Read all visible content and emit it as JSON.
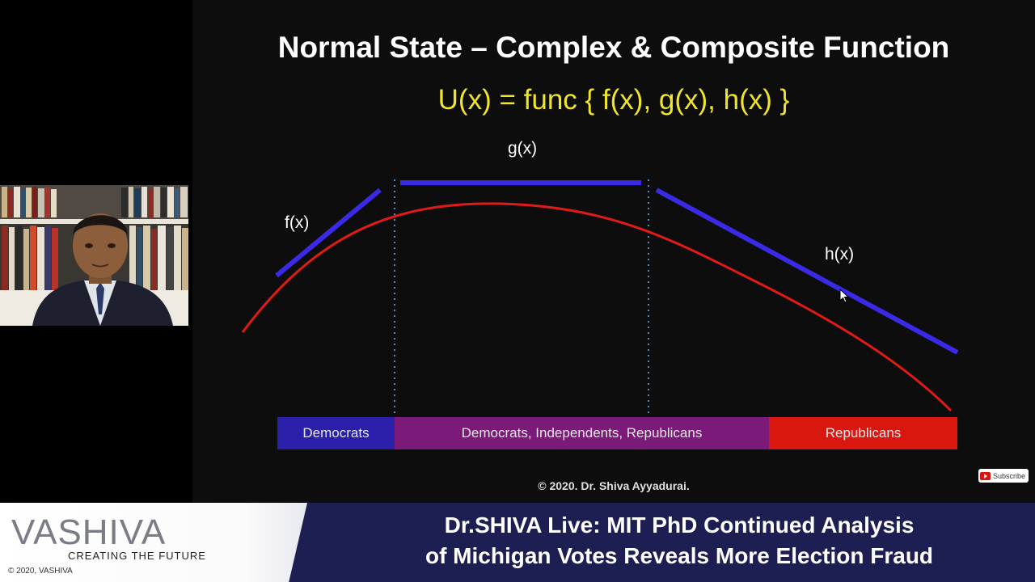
{
  "slide": {
    "title": "Normal State – Complex & Composite Function",
    "formula": "U(x) = func { f(x), g(x), h(x) }",
    "labels": {
      "f": "f(x)",
      "g": "g(x)",
      "h": "h(x)"
    },
    "bands": {
      "democrats": "Democrats",
      "mixed": "Democrats, Independents, Republicans",
      "republicans": "Republicans"
    },
    "copyright": "© 2020. Dr. Shiva Ayyadurai.",
    "colors": {
      "curve": "#e01b17",
      "segments": "#3a2ae6",
      "formula": "#f0e52a"
    }
  },
  "subscribe": {
    "label": "Subscribe",
    "icon": "youtube-icon"
  },
  "banner": {
    "logo": "VASHIVA",
    "tagline": "CREATING THE FUTURE",
    "copyright": "© 2020, VASHIVA",
    "headline_line1": "Dr.SHIVA Live: MIT PhD Continued Analysis",
    "headline_line2": "of Michigan Votes Reveals More Election Fraud"
  }
}
